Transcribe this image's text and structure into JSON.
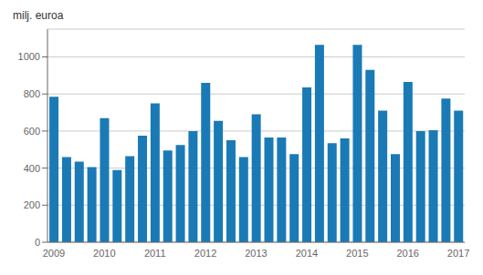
{
  "chart_data": {
    "type": "bar",
    "ylabel": "milj. euroa",
    "categories": [
      "2009",
      null,
      null,
      null,
      "2010",
      null,
      null,
      null,
      "2011",
      null,
      null,
      null,
      "2012",
      null,
      null,
      null,
      "2013",
      null,
      null,
      null,
      "2014",
      null,
      null,
      null,
      "2015",
      null,
      null,
      null,
      "2016",
      null,
      null,
      null,
      "2017"
    ],
    "values": [
      785,
      460,
      435,
      405,
      670,
      390,
      465,
      575,
      750,
      495,
      525,
      600,
      860,
      655,
      550,
      460,
      690,
      565,
      565,
      475,
      835,
      1065,
      535,
      560,
      1065,
      930,
      710,
      475,
      865,
      600,
      605,
      775,
      710
    ],
    "color": "#1a7ab5",
    "ylim": [
      0,
      1150
    ],
    "yticks": [
      0,
      200,
      400,
      600,
      800,
      1000
    ],
    "grid": true
  }
}
